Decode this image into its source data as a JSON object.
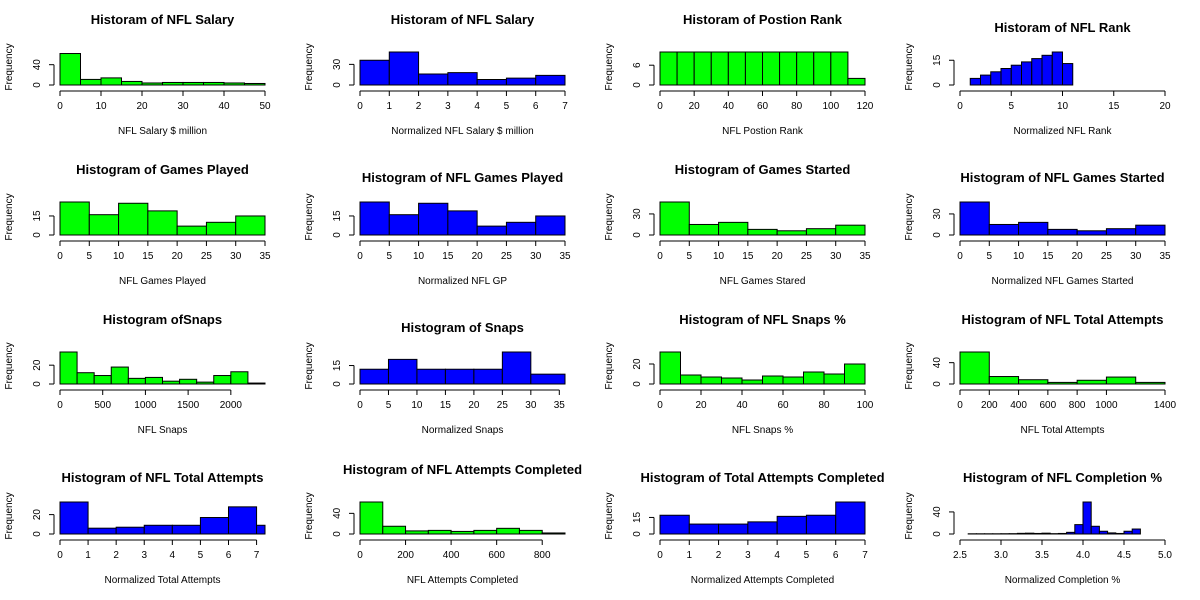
{
  "chart_data": [
    {
      "type": "bar",
      "title": "Historam of NFL Salary",
      "xlabel": "NFL Salary $ million",
      "ylabel": "Frequency",
      "color": "#00ff00",
      "xticks": [
        0,
        10,
        20,
        30,
        40,
        50
      ],
      "yticks": [
        0,
        40
      ],
      "xlim": [
        0,
        50
      ],
      "ylim": [
        0,
        65
      ],
      "bins": [
        [
          0,
          5,
          62
        ],
        [
          5,
          10,
          11
        ],
        [
          10,
          15,
          14
        ],
        [
          15,
          20,
          7
        ],
        [
          20,
          25,
          4
        ],
        [
          25,
          30,
          5
        ],
        [
          30,
          35,
          5
        ],
        [
          35,
          40,
          5
        ],
        [
          40,
          45,
          4
        ],
        [
          45,
          50,
          3
        ]
      ]
    },
    {
      "type": "bar",
      "title": "Historam of NFL Salary",
      "xlabel": "Normalized NFL Salary $ million",
      "ylabel": "Frequency",
      "color": "#0000ff",
      "xticks": [
        0,
        1,
        2,
        3,
        4,
        5,
        6,
        7
      ],
      "yticks": [
        0,
        30
      ],
      "xlim": [
        0,
        7
      ],
      "ylim": [
        0,
        48
      ],
      "bins": [
        [
          0,
          1,
          36
        ],
        [
          1,
          2,
          48
        ],
        [
          2,
          3,
          16
        ],
        [
          3,
          4,
          18
        ],
        [
          4,
          5,
          8
        ],
        [
          5,
          6,
          10
        ],
        [
          6,
          7,
          14
        ]
      ]
    },
    {
      "type": "bar",
      "title": "Historam of Postion Rank",
      "xlabel": "NFL Postion Rank",
      "ylabel": "Frequency",
      "color": "#00ff00",
      "xticks": [
        0,
        20,
        40,
        60,
        80,
        100,
        120
      ],
      "yticks": [
        0,
        6
      ],
      "xlim": [
        0,
        120
      ],
      "ylim": [
        0,
        10
      ],
      "bins": [
        [
          0,
          10,
          10
        ],
        [
          10,
          20,
          10
        ],
        [
          20,
          30,
          10
        ],
        [
          30,
          40,
          10
        ],
        [
          40,
          50,
          10
        ],
        [
          50,
          60,
          10
        ],
        [
          60,
          70,
          10
        ],
        [
          70,
          80,
          10
        ],
        [
          80,
          90,
          10
        ],
        [
          90,
          100,
          10
        ],
        [
          100,
          110,
          10
        ],
        [
          110,
          120,
          2
        ]
      ]
    },
    {
      "type": "bar",
      "title": "Historam of NFL Rank",
      "xlabel": "Normalized NFL Rank",
      "ylabel": "Frequency",
      "color": "#0000ff",
      "xticks": [
        0,
        5,
        10,
        15,
        20
      ],
      "yticks": [
        0,
        15
      ],
      "xlim": [
        0,
        20
      ],
      "ylim": [
        0,
        20
      ],
      "bins": [
        [
          1,
          2,
          4
        ],
        [
          2,
          3,
          6
        ],
        [
          3,
          4,
          8
        ],
        [
          4,
          5,
          10
        ],
        [
          5,
          6,
          12
        ],
        [
          6,
          7,
          14
        ],
        [
          7,
          8,
          16
        ],
        [
          8,
          9,
          18
        ],
        [
          9,
          10,
          20
        ],
        [
          10,
          11,
          13
        ]
      ]
    },
    {
      "type": "bar",
      "title": "Histogram  of Games Played",
      "xlabel": "NFL Games Played",
      "ylabel": "Frequency",
      "color": "#00ff00",
      "xticks": [
        0,
        5,
        10,
        15,
        20,
        25,
        30,
        35
      ],
      "yticks": [
        0,
        15
      ],
      "xlim": [
        0,
        35
      ],
      "ylim": [
        0,
        26
      ],
      "bins": [
        [
          0,
          5,
          26
        ],
        [
          5,
          10,
          16
        ],
        [
          10,
          15,
          25
        ],
        [
          15,
          20,
          19
        ],
        [
          20,
          25,
          7
        ],
        [
          25,
          30,
          10
        ],
        [
          30,
          35,
          15
        ]
      ]
    },
    {
      "type": "bar",
      "title": "Histogram  of NFL Games Played",
      "xlabel": "Normalized NFL GP",
      "ylabel": "Frequency",
      "color": "#0000ff",
      "xticks": [
        0,
        5,
        10,
        15,
        20,
        25,
        30,
        35
      ],
      "yticks": [
        0,
        15
      ],
      "xlim": [
        0,
        35
      ],
      "ylim": [
        0,
        26
      ],
      "bins": [
        [
          0,
          5,
          26
        ],
        [
          5,
          10,
          16
        ],
        [
          10,
          15,
          25
        ],
        [
          15,
          20,
          19
        ],
        [
          20,
          25,
          7
        ],
        [
          25,
          30,
          10
        ],
        [
          30,
          35,
          15
        ]
      ]
    },
    {
      "type": "bar",
      "title": "Histogram of Games Started",
      "xlabel": "NFL Games Stared",
      "ylabel": "Frequency",
      "color": "#00ff00",
      "xticks": [
        0,
        5,
        10,
        15,
        20,
        25,
        30,
        35
      ],
      "yticks": [
        0,
        30
      ],
      "xlim": [
        0,
        35
      ],
      "ylim": [
        0,
        47
      ],
      "bins": [
        [
          0,
          5,
          47
        ],
        [
          5,
          10,
          15
        ],
        [
          10,
          15,
          18
        ],
        [
          15,
          20,
          8
        ],
        [
          20,
          25,
          6
        ],
        [
          25,
          30,
          9
        ],
        [
          30,
          35,
          14
        ]
      ]
    },
    {
      "type": "bar",
      "title": "Histogram of NFL Games Started",
      "xlabel": "Normalized NFL Games Started",
      "ylabel": "Frequency",
      "color": "#0000ff",
      "xticks": [
        0,
        5,
        10,
        15,
        20,
        25,
        30,
        35
      ],
      "yticks": [
        0,
        30
      ],
      "xlim": [
        0,
        35
      ],
      "ylim": [
        0,
        47
      ],
      "bins": [
        [
          0,
          5,
          47
        ],
        [
          5,
          10,
          15
        ],
        [
          10,
          15,
          18
        ],
        [
          15,
          20,
          8
        ],
        [
          20,
          25,
          6
        ],
        [
          25,
          30,
          9
        ],
        [
          30,
          35,
          14
        ]
      ]
    },
    {
      "type": "bar",
      "title": "Histogram ofSnaps",
      "xlabel": "NFL Snaps",
      "ylabel": "Frequency",
      "color": "#00ff00",
      "xticks": [
        0,
        500,
        1000,
        1500,
        2000
      ],
      "yticks": [
        0,
        20
      ],
      "xlim": [
        0,
        2400
      ],
      "ylim": [
        0,
        34
      ],
      "bins": [
        [
          0,
          200,
          34
        ],
        [
          200,
          400,
          12
        ],
        [
          400,
          600,
          9
        ],
        [
          600,
          800,
          18
        ],
        [
          800,
          1000,
          6
        ],
        [
          1000,
          1200,
          7
        ],
        [
          1200,
          1400,
          3
        ],
        [
          1400,
          1600,
          5
        ],
        [
          1600,
          1800,
          2
        ],
        [
          1800,
          2000,
          9
        ],
        [
          2000,
          2200,
          13
        ],
        [
          2200,
          2400,
          1
        ]
      ]
    },
    {
      "type": "bar",
      "title": "Histogram of Snaps",
      "xlabel": "Normalized Snaps",
      "ylabel": "Frequency",
      "color": "#0000ff",
      "xticks": [
        0,
        5,
        10,
        15,
        20,
        25,
        30,
        35
      ],
      "yticks": [
        0,
        15
      ],
      "xlim": [
        0,
        36
      ],
      "ylim": [
        0,
        26
      ],
      "bins": [
        [
          0,
          5,
          12
        ],
        [
          5,
          10,
          20
        ],
        [
          10,
          15,
          12
        ],
        [
          15,
          20,
          12
        ],
        [
          20,
          25,
          12
        ],
        [
          25,
          30,
          26
        ],
        [
          30,
          36,
          8
        ]
      ]
    },
    {
      "type": "bar",
      "title": "Histogram of NFL Snaps %",
      "xlabel": "NFL Snaps %",
      "ylabel": "Frequency",
      "color": "#00ff00",
      "xticks": [
        0,
        20,
        40,
        60,
        80,
        100
      ],
      "yticks": [
        0,
        20
      ],
      "xlim": [
        0,
        100
      ],
      "ylim": [
        0,
        32
      ],
      "bins": [
        [
          0,
          10,
          32
        ],
        [
          10,
          20,
          9
        ],
        [
          20,
          30,
          7
        ],
        [
          30,
          40,
          6
        ],
        [
          40,
          50,
          4
        ],
        [
          50,
          60,
          8
        ],
        [
          60,
          70,
          7
        ],
        [
          70,
          80,
          12
        ],
        [
          80,
          90,
          10
        ],
        [
          90,
          100,
          20
        ]
      ]
    },
    {
      "type": "bar",
      "title": "Histogram of NFL Total Attempts",
      "xlabel": "NFL Total Attempts",
      "ylabel": "Frequency",
      "color": "#00ff00",
      "xticks": [
        0,
        200,
        400,
        600,
        800,
        1000,
        1400
      ],
      "yticks": [
        0,
        40
      ],
      "xlim": [
        0,
        1400
      ],
      "ylim": [
        0,
        60
      ],
      "bins": [
        [
          0,
          200,
          60
        ],
        [
          200,
          400,
          14
        ],
        [
          400,
          600,
          8
        ],
        [
          600,
          800,
          3
        ],
        [
          800,
          1000,
          7
        ],
        [
          1000,
          1200,
          13
        ],
        [
          1200,
          1400,
          3
        ]
      ]
    },
    {
      "type": "bar",
      "title": "Histogram of NFL Total Attempts",
      "xlabel": "Normalized Total Attempts",
      "ylabel": "Frequency",
      "color": "#0000ff",
      "xticks": [
        0,
        1,
        2,
        3,
        4,
        5,
        6,
        7
      ],
      "yticks": [
        0,
        20
      ],
      "xlim": [
        0,
        7.3
      ],
      "ylim": [
        0,
        33
      ],
      "bins": [
        [
          0,
          1,
          33
        ],
        [
          1,
          2,
          6
        ],
        [
          2,
          3,
          7
        ],
        [
          3,
          4,
          9
        ],
        [
          4,
          5,
          9
        ],
        [
          5,
          6,
          17
        ],
        [
          6,
          7,
          28
        ],
        [
          7,
          7.3,
          9
        ]
      ]
    },
    {
      "type": "bar",
      "title": "Histogram of NFL Attempts Completed",
      "xlabel": "NFL Attempts Completed",
      "ylabel": "Frequency",
      "color": "#00ff00",
      "xticks": [
        0,
        200,
        400,
        600,
        800
      ],
      "yticks": [
        0,
        40
      ],
      "xlim": [
        0,
        900
      ],
      "ylim": [
        0,
        62
      ],
      "bins": [
        [
          0,
          100,
          62
        ],
        [
          100,
          200,
          15
        ],
        [
          200,
          300,
          6
        ],
        [
          300,
          400,
          7
        ],
        [
          400,
          500,
          5
        ],
        [
          500,
          600,
          7
        ],
        [
          600,
          700,
          11
        ],
        [
          700,
          800,
          7
        ],
        [
          800,
          900,
          2
        ]
      ]
    },
    {
      "type": "bar",
      "title": "Histogram of Total Attempts Completed",
      "xlabel": "Normalized Attempts Completed",
      "ylabel": "Frequency",
      "color": "#0000ff",
      "xticks": [
        0,
        1,
        2,
        3,
        4,
        5,
        6,
        7
      ],
      "yticks": [
        0,
        15
      ],
      "xlim": [
        0,
        7
      ],
      "ylim": [
        0,
        29
      ],
      "bins": [
        [
          0,
          1,
          17
        ],
        [
          1,
          2,
          9
        ],
        [
          2,
          3,
          9
        ],
        [
          3,
          4,
          11
        ],
        [
          4,
          5,
          16
        ],
        [
          5,
          6,
          17
        ],
        [
          6,
          7,
          29
        ]
      ]
    },
    {
      "type": "bar",
      "title": "Histogram of NFL Completion %",
      "xlabel": "Normalized Completion %",
      "ylabel": "Frequency",
      "color": "#0000ff",
      "xticks": [
        2.5,
        3.0,
        3.5,
        4.0,
        4.5,
        5.0
      ],
      "xtick_labels": [
        "2.5",
        "3.0",
        "3.5",
        "4.0",
        "4.5",
        "5.0"
      ],
      "yticks": [
        0,
        40
      ],
      "xlim": [
        2.5,
        5.0
      ],
      "ylim": [
        0,
        58
      ],
      "bins": [
        [
          2.6,
          2.7,
          0.4
        ],
        [
          2.7,
          2.8,
          0.4
        ],
        [
          2.8,
          2.9,
          0.4
        ],
        [
          2.9,
          3.0,
          0.4
        ],
        [
          3.0,
          3.1,
          0.5
        ],
        [
          3.1,
          3.2,
          0.6
        ],
        [
          3.2,
          3.3,
          1.2
        ],
        [
          3.3,
          3.4,
          1.5
        ],
        [
          3.4,
          3.5,
          1
        ],
        [
          3.5,
          3.6,
          1.5
        ],
        [
          3.6,
          3.7,
          0.6
        ],
        [
          3.7,
          3.8,
          1
        ],
        [
          3.8,
          3.9,
          3
        ],
        [
          3.9,
          4.0,
          17
        ],
        [
          4.0,
          4.1,
          58
        ],
        [
          4.1,
          4.2,
          14
        ],
        [
          4.2,
          4.3,
          5
        ],
        [
          4.3,
          4.4,
          2
        ],
        [
          4.4,
          4.5,
          1
        ],
        [
          4.5,
          4.6,
          5
        ],
        [
          4.6,
          4.7,
          9
        ]
      ]
    }
  ]
}
